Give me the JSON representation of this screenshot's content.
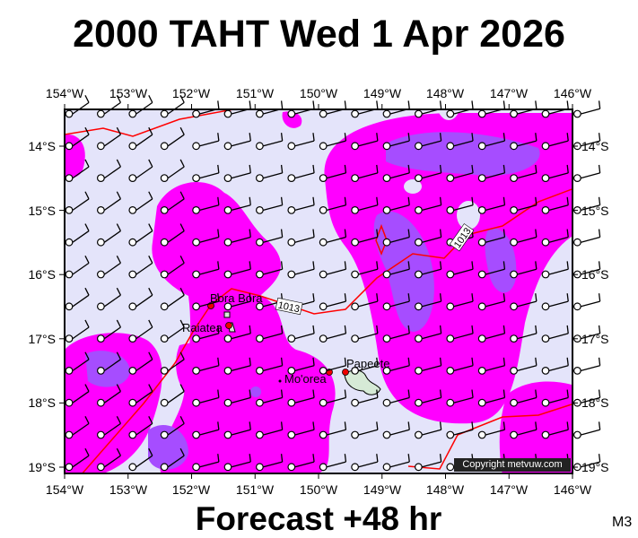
{
  "title": "2000 TAHT Wed 1 Apr 2026",
  "footer": {
    "forecast": "Forecast +48 hr",
    "model": "M3",
    "copyright": "Copyright metvuw.com"
  },
  "map": {
    "lon_labels": [
      "154°W",
      "153°W",
      "152°W",
      "151°W",
      "150°W",
      "149°W",
      "148°W",
      "147°W",
      "146°W"
    ],
    "lat_labels": [
      "14°S",
      "15°S",
      "16°S",
      "17°S",
      "18°S",
      "19°S"
    ],
    "places": [
      {
        "name": "Bora Bora"
      },
      {
        "name": "Raiatea"
      },
      {
        "name": "Mo'orea"
      },
      {
        "name": "Papeete"
      }
    ],
    "isobar_labels": [
      "1013",
      "1013"
    ],
    "colors": {
      "background": "#e4e4fa",
      "precip_light": "#ff00ff",
      "precip_heavy": "#a64dff",
      "isobar": "#ff0000",
      "land": "#d6ead6"
    }
  }
}
